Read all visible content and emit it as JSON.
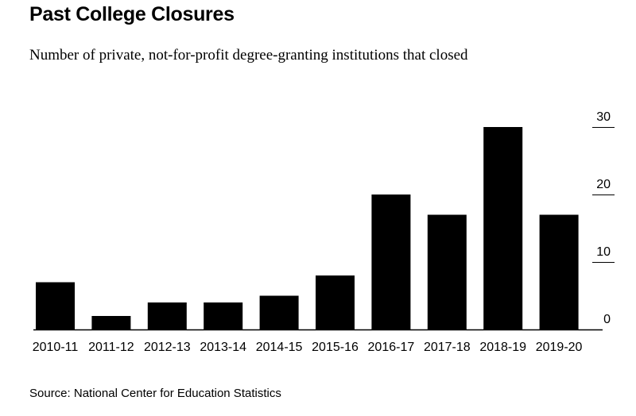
{
  "header": {
    "title": "Past College Closures",
    "subtitle": "Number of private, not-for-profit degree-granting institutions that closed"
  },
  "footer": {
    "source": "Source: National Center for Education Statistics"
  },
  "colors": {
    "bar": "#000000",
    "axis": "#000000",
    "background": "#ffffff"
  },
  "chart_data": {
    "type": "bar",
    "title": "Past College Closures",
    "subtitle": "Number of private, not-for-profit degree-granting institutions that closed",
    "categories": [
      "2010-11",
      "2011-12",
      "2012-13",
      "2013-14",
      "2014-15",
      "2015-16",
      "2016-17",
      "2017-18",
      "2018-19",
      "2019-20"
    ],
    "values": [
      7,
      2,
      4,
      4,
      5,
      8,
      20,
      17,
      30,
      17
    ],
    "ylim": [
      0,
      30
    ],
    "yticks": [
      0,
      10,
      20,
      30
    ],
    "y_axis_position": "right",
    "grid": false,
    "xlabel": "",
    "ylabel": ""
  }
}
